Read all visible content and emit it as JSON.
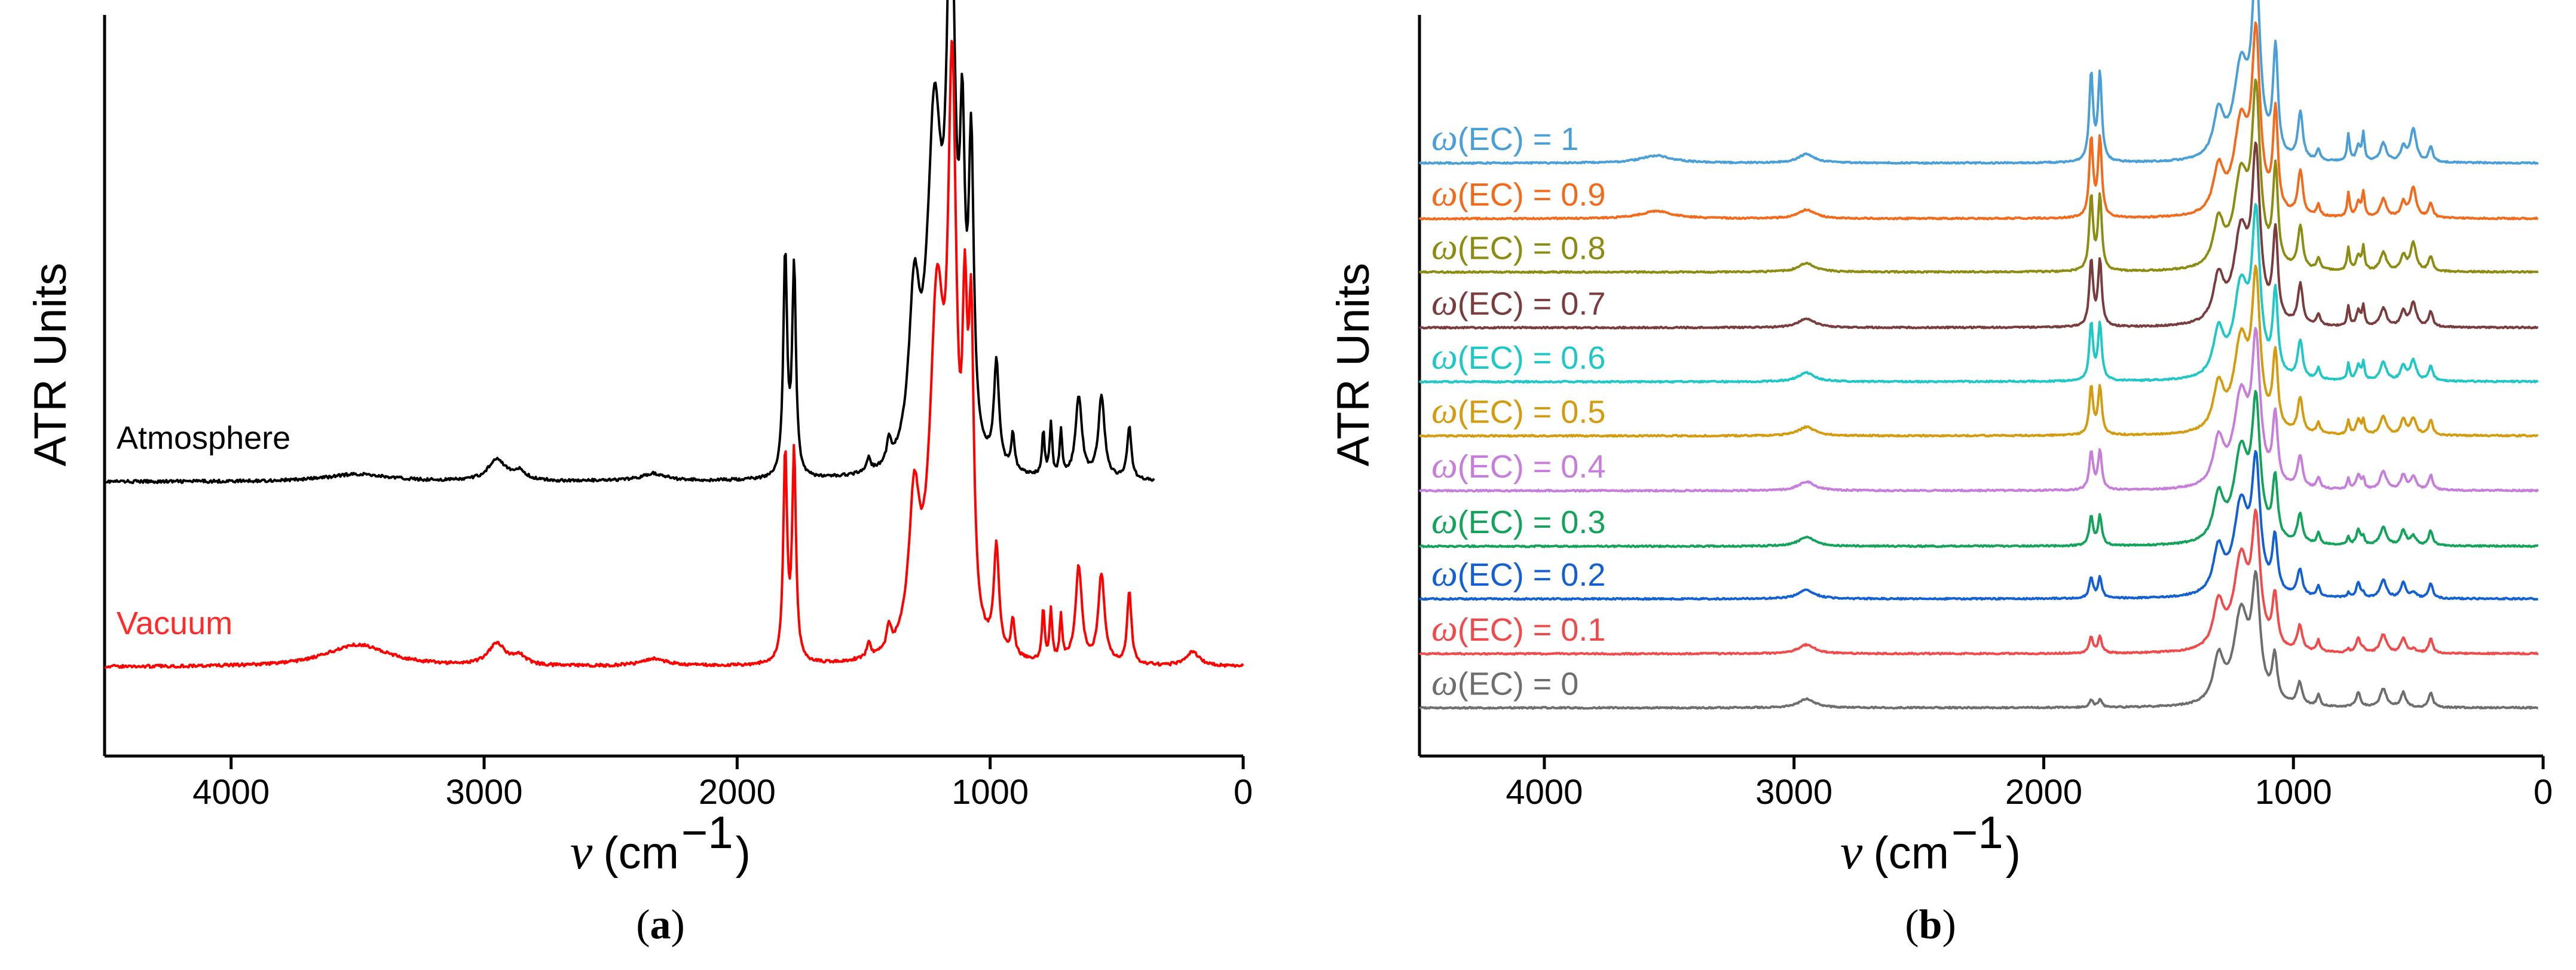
{
  "chart_data": [
    {
      "panel": "a",
      "panel_label": "a",
      "type": "line",
      "xlabel_symbol": "ν",
      "xlabel_unit": "(cm",
      "xlabel_exp": "−1",
      "xlabel_close": ")",
      "ylabel": "ATR Units",
      "xlim": [
        4500,
        0
      ],
      "xticks": [
        4000,
        3000,
        2000,
        1000,
        0
      ],
      "xtick_labels": [
        "4000",
        "3000",
        "2000",
        "1000",
        "0"
      ],
      "series": [
        {
          "name": "Atmosphere",
          "color": "#000000",
          "label_color": "#000000",
          "x_start": 4500,
          "x_end": 350,
          "baseline": 0.37,
          "noise": 0.004,
          "peaks": [
            [
              3500,
              0.01,
              150
            ],
            [
              2950,
              0.03,
              40
            ],
            [
              2860,
              0.012,
              30
            ],
            [
              2330,
              0.01,
              60
            ],
            [
              1810,
              0.3,
              9
            ],
            [
              1775,
              0.28,
              9
            ],
            [
              1480,
              0.02,
              8
            ],
            [
              1400,
              0.03,
              10
            ],
            [
              1300,
              0.21,
              25
            ],
            [
              1220,
              0.45,
              35
            ],
            [
              1155,
              0.7,
              20
            ],
            [
              1110,
              0.35,
              12
            ],
            [
              1075,
              0.39,
              12
            ],
            [
              975,
              0.14,
              12
            ],
            [
              910,
              0.05,
              8
            ],
            [
              790,
              0.06,
              6
            ],
            [
              760,
              0.07,
              6
            ],
            [
              720,
              0.06,
              6
            ],
            [
              650,
              0.11,
              15
            ],
            [
              560,
              0.11,
              15
            ],
            [
              450,
              0.07,
              10
            ]
          ]
        },
        {
          "name": "Vacuum",
          "color": "#ff0000",
          "label_color": "#ff2a2a",
          "x_start": 4500,
          "x_end": 0,
          "baseline": 0.12,
          "noise": 0.004,
          "peaks": [
            [
              3500,
              0.03,
              150
            ],
            [
              2950,
              0.03,
              40
            ],
            [
              2860,
              0.012,
              30
            ],
            [
              2330,
              0.01,
              60
            ],
            [
              1810,
              0.28,
              9
            ],
            [
              1775,
              0.28,
              9
            ],
            [
              1480,
              0.02,
              8
            ],
            [
              1400,
              0.03,
              10
            ],
            [
              1300,
              0.19,
              25
            ],
            [
              1210,
              0.45,
              35
            ],
            [
              1150,
              0.7,
              20
            ],
            [
              1100,
              0.35,
              12
            ],
            [
              1075,
              0.38,
              12
            ],
            [
              975,
              0.14,
              12
            ],
            [
              910,
              0.05,
              8
            ],
            [
              790,
              0.07,
              6
            ],
            [
              760,
              0.07,
              6
            ],
            [
              720,
              0.06,
              6
            ],
            [
              650,
              0.13,
              15
            ],
            [
              560,
              0.12,
              15
            ],
            [
              450,
              0.1,
              10
            ],
            [
              200,
              0.02,
              30
            ]
          ]
        }
      ]
    },
    {
      "panel": "b",
      "panel_label": "b",
      "type": "line",
      "xlabel_symbol": "ν",
      "xlabel_unit": "(cm",
      "xlabel_exp": "−1",
      "xlabel_close": ")",
      "ylabel": "ATR Units",
      "xlim": [
        4500,
        0
      ],
      "xticks": [
        4000,
        3000,
        2000,
        1000,
        0
      ],
      "xtick_labels": [
        "4000",
        "3000",
        "2000",
        "1000",
        "0"
      ],
      "label_symbol": "ω",
      "series": [
        {
          "name": "ω(EC) = 1",
          "label_text": "(EC) = 1",
          "color": "#4a9fd8",
          "baseline": 0.8,
          "carbonate": 0.18
        },
        {
          "name": "ω(EC) = 0.9",
          "label_text": "(EC) = 0.9",
          "color": "#f26b1d",
          "baseline": 0.725,
          "carbonate": 0.16
        },
        {
          "name": "ω(EC) = 0.8",
          "label_text": "(EC) = 0.8",
          "color": "#8c8c12",
          "baseline": 0.653,
          "carbonate": 0.15
        },
        {
          "name": "ω(EC) = 0.7",
          "label_text": "(EC) = 0.7",
          "color": "#7a3c3c",
          "baseline": 0.578,
          "carbonate": 0.13
        },
        {
          "name": "ω(EC) = 0.6",
          "label_text": "(EC) = 0.6",
          "color": "#1fc7c7",
          "baseline": 0.505,
          "carbonate": 0.11
        },
        {
          "name": "ω(EC) = 0.5",
          "label_text": "(EC) = 0.5",
          "color": "#d49b0f",
          "baseline": 0.432,
          "carbonate": 0.09
        },
        {
          "name": "ω(EC) = 0.4",
          "label_text": "(EC) = 0.4",
          "color": "#c77ddb",
          "baseline": 0.358,
          "carbonate": 0.07
        },
        {
          "name": "ω(EC) = 0.3",
          "label_text": "(EC) = 0.3",
          "color": "#14a35a",
          "baseline": 0.283,
          "carbonate": 0.05
        },
        {
          "name": "ω(EC) = 0.2",
          "label_text": "(EC) = 0.2",
          "color": "#1360d4",
          "baseline": 0.212,
          "carbonate": 0.03
        },
        {
          "name": "ω(EC) = 0.1",
          "label_text": "(EC) = 0.1",
          "color": "#f04a4a",
          "baseline": 0.138,
          "carbonate": 0.02
        },
        {
          "name": "ω(EC) = 0",
          "label_text": "(EC) = 0",
          "color": "#6e6e6e",
          "baseline": 0.065,
          "carbonate": 0.0
        }
      ]
    }
  ]
}
